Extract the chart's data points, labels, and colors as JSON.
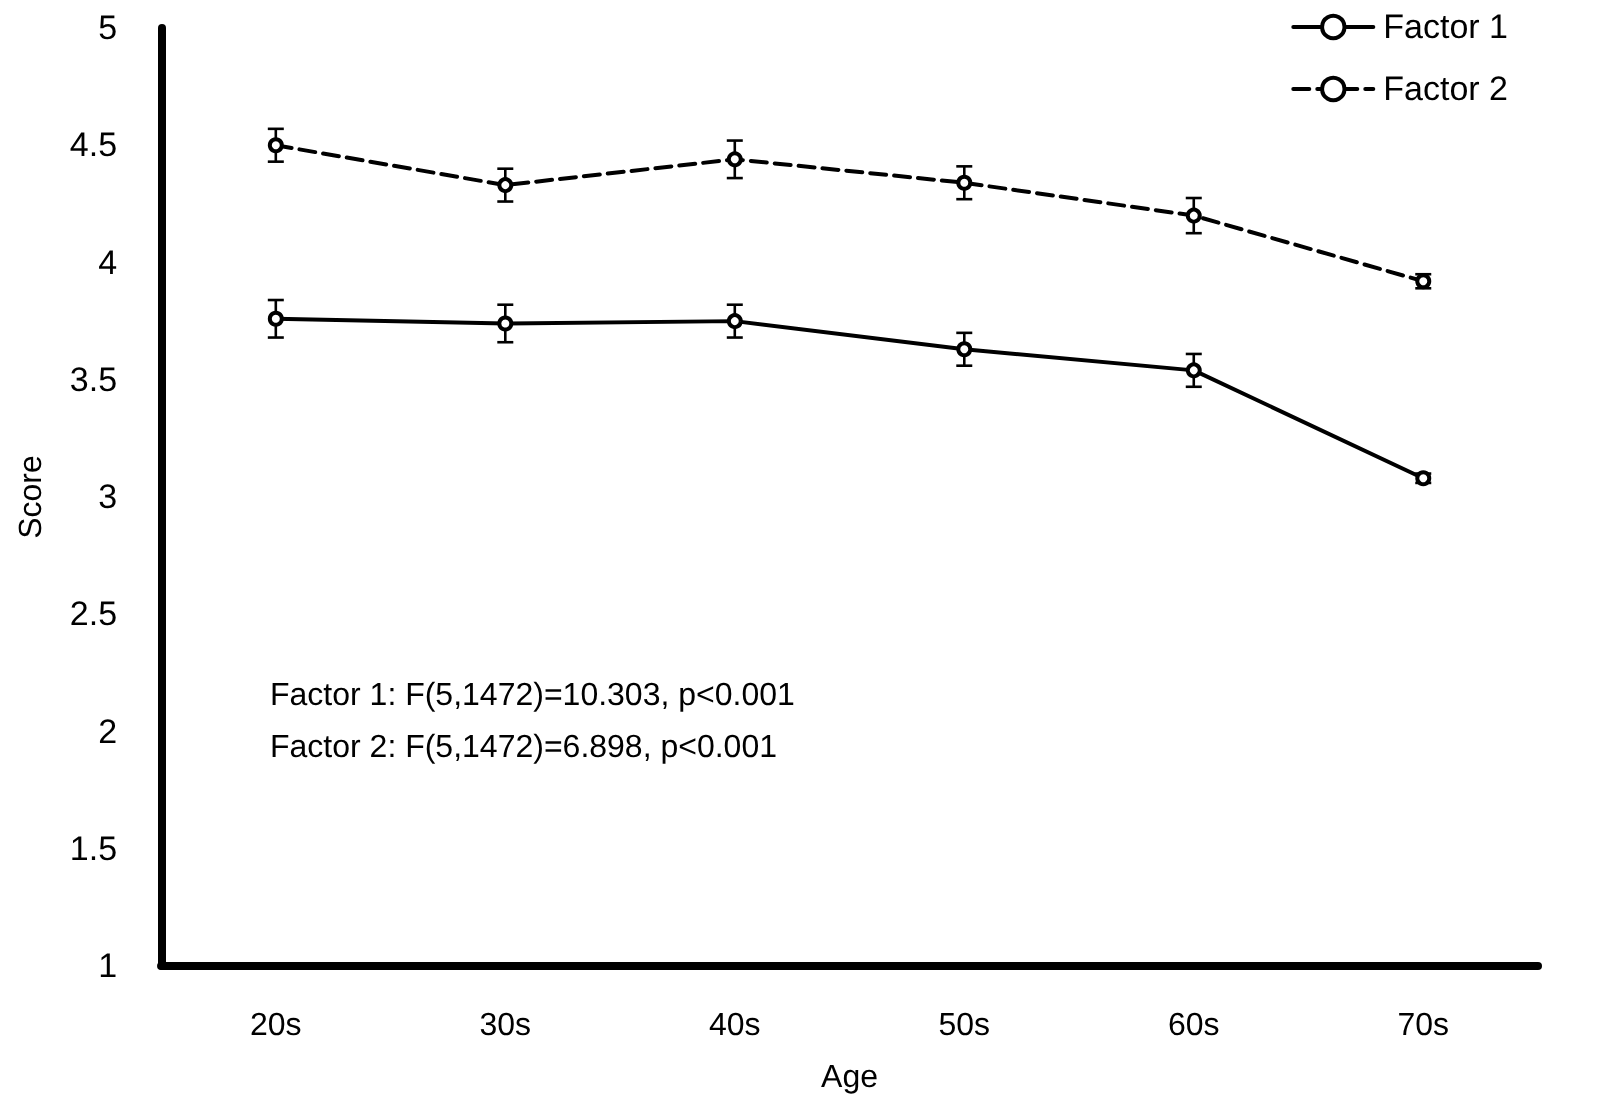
{
  "chart_data": {
    "type": "line",
    "xlabel": "Age",
    "ylabel": "Score",
    "categories": [
      "20s",
      "30s",
      "40s",
      "50s",
      "60s",
      "70s"
    ],
    "series": [
      {
        "name": "Factor 1",
        "color": "#000000",
        "line_style": "solid",
        "values": [
          3.76,
          3.74,
          3.75,
          3.63,
          3.54,
          3.08
        ],
        "errors": [
          0.08,
          0.08,
          0.07,
          0.07,
          0.07,
          0.02
        ]
      },
      {
        "name": "Factor 2",
        "color": "#000000",
        "line_style": "dashed",
        "values": [
          4.5,
          4.33,
          4.44,
          4.34,
          4.2,
          3.92
        ],
        "errors": [
          0.07,
          0.07,
          0.08,
          0.07,
          0.075,
          0.03
        ]
      }
    ],
    "ylim": [
      1,
      5
    ],
    "yticks": [
      1,
      1.5,
      2,
      2.5,
      3,
      3.5,
      4,
      4.5,
      5
    ],
    "marker": "circle",
    "grid": false,
    "legend": "top right",
    "annotations": [
      "Factor 1: F(5,1472)=10.303, p<0.001",
      "Factor 2: F(5,1472)=6.898, p<0.001"
    ]
  }
}
